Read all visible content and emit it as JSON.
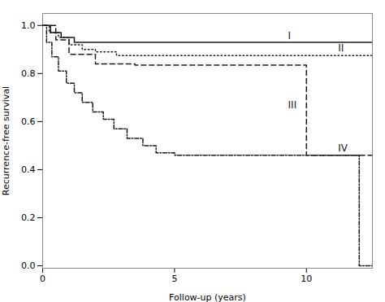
{
  "chart_data": {
    "type": "line",
    "xlabel": "Follow-up (years)",
    "ylabel": "Recurrence-free survival",
    "xlim": [
      0,
      12.5
    ],
    "ylim": [
      -0.01,
      1.05
    ],
    "xticks": [
      0,
      5,
      10
    ],
    "yticks": [
      {
        "value": 0.0,
        "label": "0.0"
      },
      0.2,
      0.4,
      0.6,
      0.8,
      {
        "value": 1.0,
        "label": "1.0"
      }
    ],
    "grid": false,
    "series": [
      {
        "name": "I",
        "color": "#1a1a1a",
        "line_style": "solid",
        "x": [
          0,
          0.3,
          0.3,
          0.7,
          0.7,
          1.2,
          1.2,
          12.5
        ],
        "values": [
          1.0,
          1.0,
          0.97,
          0.97,
          0.95,
          0.95,
          0.93,
          0.93
        ],
        "label_x": 9.3,
        "label_y": 0.955
      },
      {
        "name": "II",
        "color": "#1a1a1a",
        "line_style": "dotted",
        "x": [
          0,
          0.25,
          0.25,
          0.6,
          0.6,
          1.0,
          1.0,
          1.5,
          1.5,
          2.0,
          2.0,
          2.8,
          2.8,
          12.5
        ],
        "values": [
          1.0,
          1.0,
          0.97,
          0.97,
          0.95,
          0.95,
          0.92,
          0.92,
          0.9,
          0.9,
          0.89,
          0.89,
          0.875,
          0.875
        ],
        "label_x": 11.2,
        "label_y": 0.905
      },
      {
        "name": "III",
        "color": "#1a1a1a",
        "line_style": "dashed",
        "x": [
          0,
          0.5,
          0.5,
          1.0,
          1.0,
          2.0,
          2.0,
          3.5,
          3.5,
          10.0,
          10.0,
          12.5
        ],
        "values": [
          1.0,
          1.0,
          0.94,
          0.94,
          0.88,
          0.88,
          0.84,
          0.84,
          0.835,
          0.835,
          0.46,
          0.46
        ],
        "label_x": 9.3,
        "label_y": 0.67
      },
      {
        "name": "IV",
        "color": "#1a1a1a",
        "line_style": "dashdot",
        "x": [
          0,
          0.15,
          0.15,
          0.35,
          0.35,
          0.6,
          0.6,
          0.9,
          0.9,
          1.2,
          1.2,
          1.5,
          1.5,
          1.9,
          1.9,
          2.3,
          2.3,
          2.7,
          2.7,
          3.2,
          3.2,
          3.8,
          3.8,
          4.3,
          4.3,
          5.0,
          5.0,
          12.0,
          12.0,
          12.5
        ],
        "values": [
          1.0,
          1.0,
          0.93,
          0.93,
          0.87,
          0.87,
          0.81,
          0.81,
          0.76,
          0.76,
          0.72,
          0.72,
          0.68,
          0.68,
          0.64,
          0.64,
          0.61,
          0.61,
          0.57,
          0.57,
          0.53,
          0.53,
          0.5,
          0.5,
          0.47,
          0.47,
          0.46,
          0.46,
          0.0,
          0.0
        ],
        "label_x": 11.2,
        "label_y": 0.49
      }
    ]
  }
}
